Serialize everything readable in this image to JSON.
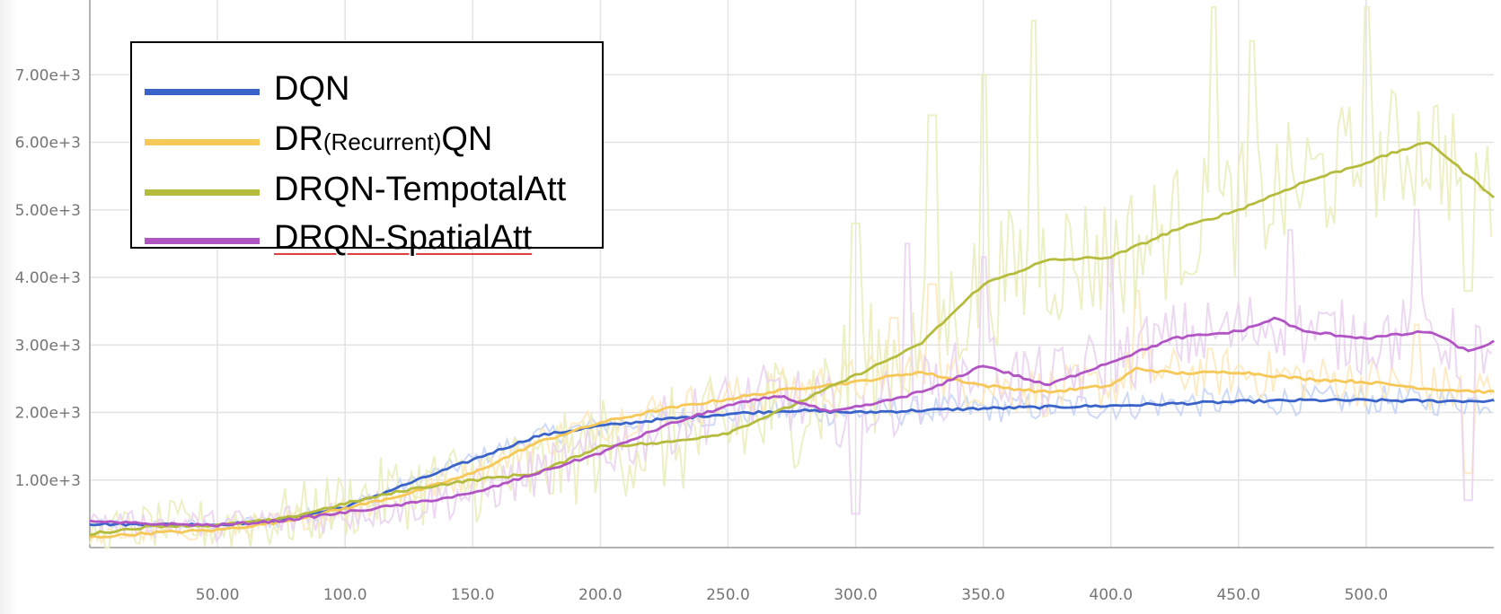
{
  "chart_data": {
    "type": "line",
    "title": "",
    "xlabel": "",
    "ylabel": "",
    "xlim": [
      0,
      550
    ],
    "ylim": [
      0,
      8000
    ],
    "x_ticks": [
      50,
      100,
      150,
      200,
      250,
      300,
      350,
      400,
      450,
      500
    ],
    "x_tick_labels": [
      "50.00",
      "100.0",
      "150.0",
      "200.0",
      "250.0",
      "300.0",
      "350.0",
      "400.0",
      "450.0",
      "500.0"
    ],
    "y_ticks": [
      1000,
      2000,
      3000,
      4000,
      5000,
      6000,
      7000
    ],
    "y_tick_labels": [
      "1.00e+3",
      "2.00e+3",
      "3.00e+3",
      "4.00e+3",
      "5.00e+3",
      "6.00e+3",
      "7.00e+3"
    ],
    "grid": true,
    "legend_position": "top-left",
    "series": [
      {
        "name": "DQN",
        "legend_parts": [
          "DQN"
        ],
        "color": "#3a63c9",
        "raw_color": "#c6d4f3",
        "noise": 220,
        "x": [
          0,
          25,
          50,
          75,
          100,
          125,
          150,
          175,
          200,
          225,
          250,
          275,
          300,
          325,
          350,
          375,
          400,
          425,
          450,
          475,
          500,
          525,
          550
        ],
        "values": [
          350,
          340,
          340,
          400,
          600,
          950,
          1300,
          1650,
          1800,
          1900,
          1980,
          2030,
          2000,
          2030,
          2060,
          2080,
          2100,
          2130,
          2160,
          2180,
          2180,
          2170,
          2170
        ]
      },
      {
        "name": "DR(Recurrent)QN",
        "legend_parts": [
          "DR",
          "(Recurrent)",
          "QN"
        ],
        "color": "#f5c858",
        "raw_color": "#fbe8bb",
        "noise": 380,
        "x": [
          0,
          25,
          50,
          75,
          100,
          125,
          150,
          175,
          200,
          225,
          250,
          275,
          300,
          325,
          350,
          375,
          400,
          410,
          425,
          450,
          475,
          500,
          525,
          550
        ],
        "values": [
          150,
          220,
          260,
          380,
          580,
          800,
          1100,
          1550,
          1850,
          2050,
          2200,
          2350,
          2450,
          2600,
          2400,
          2300,
          2400,
          2650,
          2580,
          2600,
          2500,
          2450,
          2350,
          2300
        ],
        "raw_spikes": [
          [
            315,
            3400
          ],
          [
            330,
            3900
          ],
          [
            410,
            3800
          ],
          [
            520,
            3300
          ],
          [
            540,
            1100
          ]
        ]
      },
      {
        "name": "DRQN-TempotalAtt",
        "legend_parts": [
          "DRQN-TempotalAtt"
        ],
        "color": "#b5bb3c",
        "raw_color": "#e9edba",
        "noise": 1000,
        "x": [
          0,
          25,
          50,
          75,
          100,
          125,
          150,
          175,
          200,
          225,
          250,
          275,
          300,
          325,
          350,
          375,
          400,
          425,
          450,
          475,
          500,
          515,
          525,
          540,
          550
        ],
        "values": [
          200,
          320,
          330,
          420,
          650,
          860,
          1000,
          1100,
          1500,
          1550,
          1700,
          2100,
          2550,
          3000,
          3900,
          4250,
          4300,
          4700,
          5000,
          5400,
          5700,
          5900,
          6000,
          5500,
          5200
        ],
        "raw_spikes": [
          [
            300,
            4800
          ],
          [
            330,
            6400
          ],
          [
            350,
            7000
          ],
          [
            370,
            7800
          ],
          [
            440,
            8000
          ],
          [
            455,
            7500
          ],
          [
            500,
            8000
          ],
          [
            540,
            3800
          ]
        ]
      },
      {
        "name": "DRQN-SpatialAtt",
        "legend_parts": [
          "DRQN-SpatialAtt"
        ],
        "color": "#b154c4",
        "raw_color": "#ead1f0",
        "noise": 550,
        "x": [
          0,
          25,
          50,
          75,
          100,
          125,
          150,
          175,
          200,
          225,
          250,
          270,
          290,
          310,
          330,
          350,
          375,
          400,
          425,
          450,
          465,
          475,
          500,
          525,
          540,
          550
        ],
        "values": [
          380,
          350,
          330,
          400,
          520,
          650,
          800,
          1100,
          1400,
          1800,
          2100,
          2250,
          2000,
          2150,
          2350,
          2700,
          2400,
          2750,
          3100,
          3200,
          3400,
          3200,
          3100,
          3200,
          2900,
          3050
        ],
        "raw_spikes": [
          [
            300,
            500
          ],
          [
            320,
            4500
          ],
          [
            350,
            4300
          ],
          [
            400,
            4300
          ],
          [
            470,
            4700
          ],
          [
            520,
            5000
          ],
          [
            540,
            700
          ]
        ]
      }
    ]
  }
}
